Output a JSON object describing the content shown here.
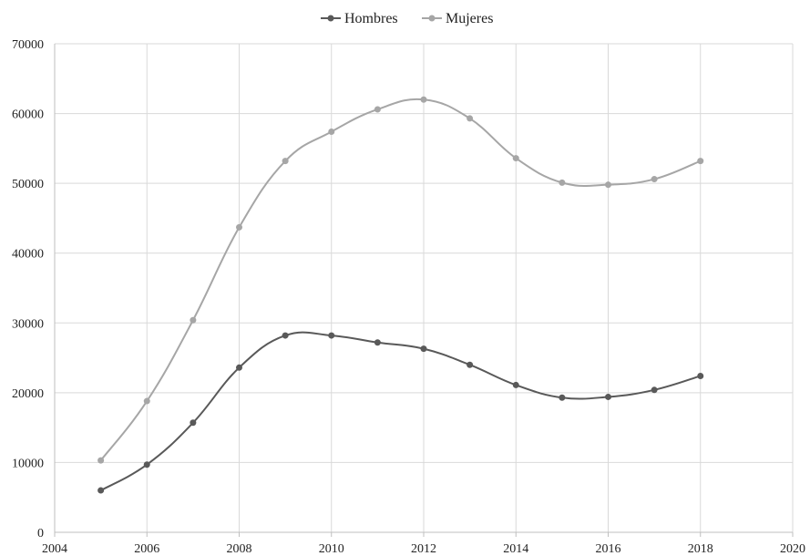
{
  "chart_data": {
    "type": "scatter",
    "mode": "lines+markers",
    "title": "",
    "xlabel": "",
    "ylabel": "",
    "xlim": [
      2004,
      2020
    ],
    "ylim": [
      0,
      70000
    ],
    "xticks": [
      2004,
      2006,
      2008,
      2010,
      2012,
      2014,
      2016,
      2018,
      2020
    ],
    "yticks": [
      0,
      10000,
      20000,
      30000,
      40000,
      50000,
      60000,
      70000
    ],
    "xtick_labels": [
      "2004",
      "2006",
      "2008",
      "2010",
      "2012",
      "2014",
      "2016",
      "2018",
      "2020"
    ],
    "ytick_labels": [
      "0",
      "10000",
      "20000",
      "30000",
      "40000",
      "50000",
      "60000",
      "70000"
    ],
    "grid": true,
    "legend_position": "top-center",
    "series": [
      {
        "name": "Hombres",
        "color": "#595959",
        "x": [
          2005,
          2006,
          2007,
          2008,
          2009,
          2010,
          2011,
          2012,
          2013,
          2014,
          2015,
          2016,
          2017,
          2018
        ],
        "y": [
          6000,
          9700,
          15700,
          23600,
          28200,
          28200,
          27200,
          26300,
          24000,
          21100,
          19300,
          19400,
          20400,
          22400
        ]
      },
      {
        "name": "Mujeres",
        "color": "#a6a6a6",
        "x": [
          2005,
          2006,
          2007,
          2008,
          2009,
          2010,
          2011,
          2012,
          2013,
          2014,
          2015,
          2016,
          2017,
          2018
        ],
        "y": [
          10300,
          18800,
          30400,
          43700,
          53200,
          57400,
          60600,
          62000,
          59300,
          53600,
          50100,
          49800,
          50600,
          53200
        ]
      }
    ]
  }
}
